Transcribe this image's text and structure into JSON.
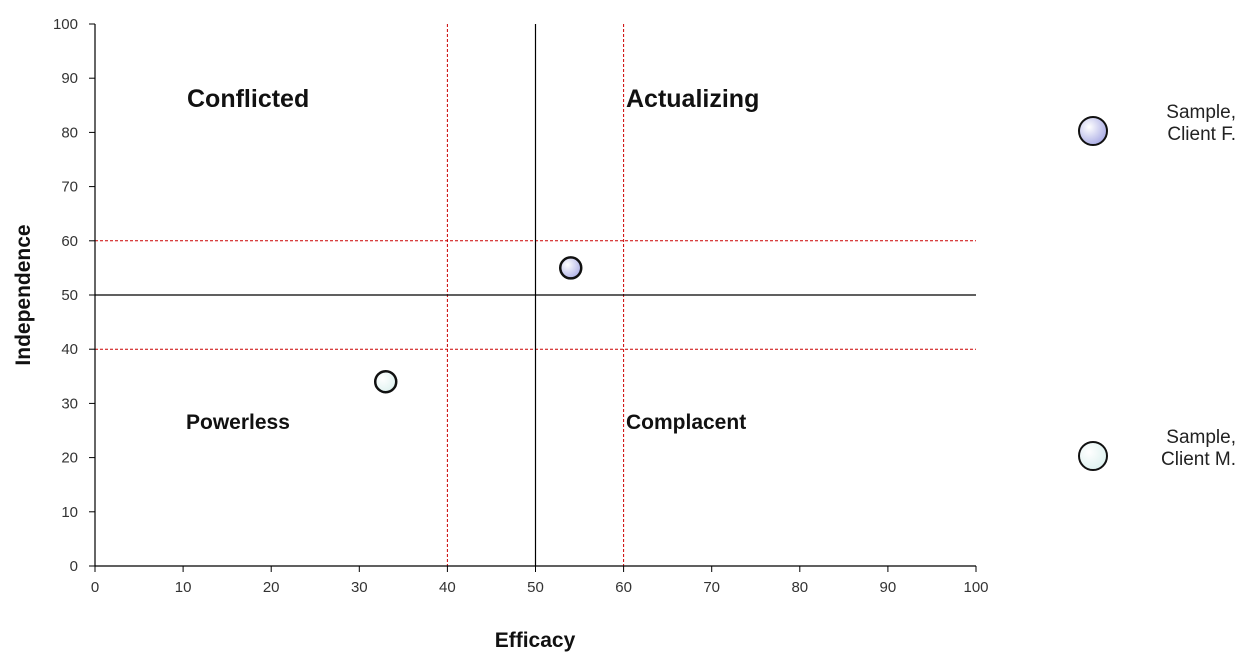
{
  "chart_data": {
    "type": "scatter",
    "xlabel": "Efficacy",
    "ylabel": "Independence",
    "xlim": [
      0,
      100
    ],
    "ylim": [
      0,
      100
    ],
    "x_ticks": [
      0,
      10,
      20,
      30,
      40,
      50,
      60,
      70,
      80,
      90,
      100
    ],
    "y_ticks": [
      0,
      10,
      20,
      30,
      40,
      50,
      60,
      70,
      80,
      90,
      100
    ],
    "grid": false,
    "reference_lines": {
      "solid": {
        "x": 50,
        "y": 50,
        "color": "#000000"
      },
      "dashed": {
        "x": [
          40,
          60
        ],
        "y": [
          40,
          60
        ],
        "color": "#cc0000"
      }
    },
    "quadrant_labels": {
      "conflicted": "Conflicted",
      "actualizing": "Actualizing",
      "powerless": "Powerless",
      "complacent": "Complacent"
    },
    "series": [
      {
        "name_lines": [
          "Sample,",
          "Client F."
        ],
        "x": 54,
        "y": 55,
        "color": "#aeb0e6"
      },
      {
        "name_lines": [
          "Sample,",
          "Client M."
        ],
        "x": 33,
        "y": 34,
        "color": "#dff2f0"
      }
    ],
    "legend_position": "right"
  }
}
